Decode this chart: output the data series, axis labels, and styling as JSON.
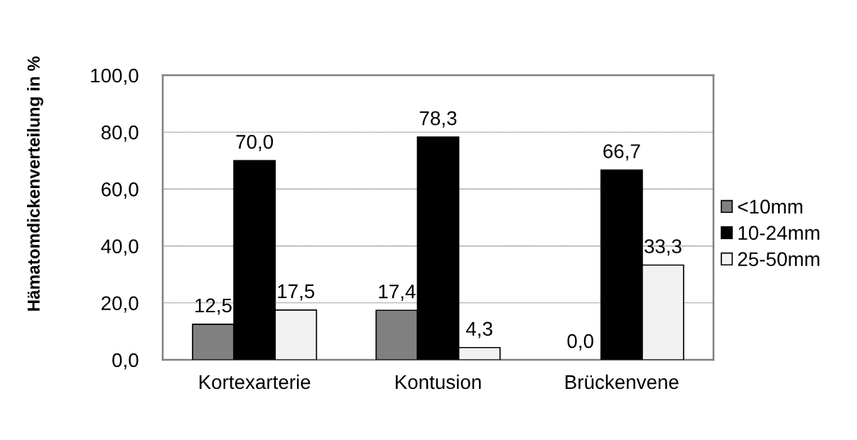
{
  "chart_data": {
    "type": "bar",
    "ylabel": "Hämatomdickenverteilung in %",
    "categories": [
      "Kortexarterie",
      "Kontusion",
      "Brückenvene"
    ],
    "series": [
      {
        "name": "<10mm",
        "color": "#808080",
        "values": [
          12.5,
          17.4,
          0.0
        ],
        "value_labels": [
          "12,5",
          "17,4",
          "0,0"
        ]
      },
      {
        "name": "10-24mm",
        "color": "#000000",
        "values": [
          70.0,
          78.3,
          66.7
        ],
        "value_labels": [
          "70,0",
          "78,3",
          "66,7"
        ]
      },
      {
        "name": "25-50mm",
        "color": "#f2f2f2",
        "values": [
          17.5,
          4.3,
          33.3
        ],
        "value_labels": [
          "17,5",
          "4,3",
          "33,3"
        ]
      }
    ],
    "ylim": [
      0,
      100
    ],
    "yticks": [
      {
        "value": 0,
        "label": "0,0"
      },
      {
        "value": 20,
        "label": "20,0"
      },
      {
        "value": 40,
        "label": "40,0"
      },
      {
        "value": 60,
        "label": "60,0"
      },
      {
        "value": 80,
        "label": "80,0"
      },
      {
        "value": 100,
        "label": "100,0"
      }
    ],
    "grid": "y",
    "legend": "right"
  }
}
